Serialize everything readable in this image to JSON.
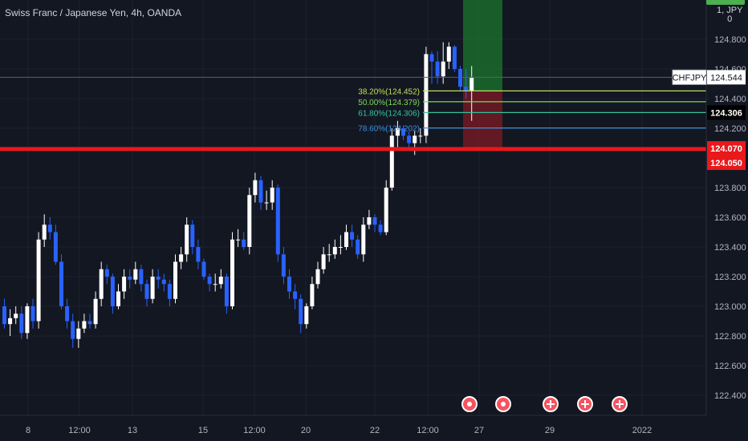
{
  "header": {
    "title": "Swiss Franc / Japanese Yen, 4h, OANDA",
    "currency_badge": "1, JPY",
    "currency_badge_suffix": "0"
  },
  "price_axis": {
    "ticks": [
      "124.800",
      "124.600",
      "124.400",
      "124.200",
      "123.800",
      "123.600",
      "123.400",
      "123.200",
      "123.000",
      "122.800",
      "122.600",
      "122.400"
    ],
    "symbol_label": "CHFJPY",
    "current_price": "124.544",
    "tags": [
      {
        "text": "124.306",
        "bg": "#000000",
        "color": "#ffffff"
      },
      {
        "text": "124.070",
        "bg": "#e8181b",
        "color": "#ffffff"
      },
      {
        "text": "124.050",
        "bg": "#e8181b",
        "color": "#ffffff"
      }
    ]
  },
  "time_axis": {
    "labels": [
      "8",
      "12:00",
      "13",
      "15",
      "12:00",
      "20",
      "22",
      "12:00",
      "27",
      "29",
      "2022"
    ]
  },
  "fib_levels": [
    {
      "label": "38.20%(124.452)",
      "price": 124.452,
      "color": "#c0e05a"
    },
    {
      "label": "50.00%(124.379)",
      "price": 124.379,
      "color": "#7ed957"
    },
    {
      "label": "61.80%(124.306)",
      "price": 124.306,
      "color": "#35c39b"
    },
    {
      "label": "78.60%(124.202)",
      "price": 124.202,
      "color": "#3e8fe0"
    }
  ],
  "support_line": {
    "price": 124.06,
    "color": "#e8181b"
  },
  "position_zone": {
    "take_profit_top": 125.0,
    "entry": 124.452,
    "stop": 124.07
  },
  "events": [
    {
      "type": "flag-icon"
    },
    {
      "type": "flag-icon"
    },
    {
      "type": "plus-icon"
    },
    {
      "type": "plus-icon"
    },
    {
      "type": "plus-icon"
    }
  ],
  "colors": {
    "up_candle": "#ffffff",
    "down_candle": "#2962ff",
    "background": "#131722",
    "grid": "#1e2230"
  },
  "chart_data": {
    "type": "candlestick",
    "series": [
      {
        "name": "CHFJPY",
        "open": [
          123.0,
          122.88,
          122.92,
          122.95,
          122.82,
          123.0,
          122.9,
          123.45,
          123.55,
          123.5,
          123.3,
          123.0,
          122.9,
          122.78,
          122.85,
          122.9,
          122.88,
          123.05,
          123.25,
          123.2,
          123.0,
          123.1,
          123.2,
          123.18,
          123.25,
          123.15,
          123.05,
          123.2,
          123.18,
          123.15,
          123.05,
          123.3,
          123.35,
          123.55,
          123.4,
          123.3,
          123.2,
          123.15,
          123.15,
          123.2,
          123.0,
          123.45,
          123.45,
          123.4,
          123.75,
          123.85,
          123.7,
          123.7,
          123.8,
          123.35,
          123.2,
          123.1,
          123.05,
          122.88,
          123.0,
          123.15,
          123.25,
          123.35,
          123.35,
          123.4,
          123.4,
          123.5,
          123.45,
          123.35,
          123.55,
          123.6,
          123.55,
          123.5,
          123.8,
          124.15,
          124.2,
          124.15,
          124.1,
          124.15,
          124.15,
          124.7,
          124.65,
          124.55,
          124.65,
          124.75,
          124.6,
          124.48,
          124.45
        ],
        "close": [
          122.88,
          122.92,
          122.95,
          122.82,
          123.0,
          122.9,
          123.45,
          123.55,
          123.5,
          123.3,
          123.0,
          122.9,
          122.78,
          122.85,
          122.9,
          122.88,
          123.05,
          123.25,
          123.2,
          123.0,
          123.1,
          123.2,
          123.18,
          123.25,
          123.15,
          123.05,
          123.2,
          123.18,
          123.15,
          123.05,
          123.3,
          123.35,
          123.55,
          123.4,
          123.3,
          123.2,
          123.15,
          123.15,
          123.2,
          123.0,
          123.45,
          123.45,
          123.4,
          123.75,
          123.85,
          123.7,
          123.7,
          123.8,
          123.35,
          123.2,
          123.1,
          123.05,
          122.88,
          123.0,
          123.15,
          123.25,
          123.35,
          123.35,
          123.4,
          123.4,
          123.5,
          123.45,
          123.35,
          123.55,
          123.6,
          123.55,
          123.5,
          123.8,
          124.15,
          124.2,
          124.15,
          124.1,
          124.15,
          124.15,
          124.7,
          124.65,
          124.55,
          124.65,
          124.75,
          124.6,
          124.48,
          124.45,
          124.54
        ],
        "high": [
          123.05,
          122.98,
          123.0,
          123.0,
          123.02,
          123.05,
          123.5,
          123.62,
          123.6,
          123.55,
          123.35,
          123.05,
          122.95,
          122.9,
          122.95,
          122.95,
          123.1,
          123.3,
          123.28,
          123.22,
          123.15,
          123.25,
          123.25,
          123.3,
          123.28,
          123.18,
          123.25,
          123.25,
          123.22,
          123.18,
          123.35,
          123.4,
          123.6,
          123.58,
          123.45,
          123.32,
          123.22,
          123.22,
          123.25,
          123.22,
          123.5,
          123.52,
          123.5,
          123.8,
          123.9,
          123.88,
          123.78,
          123.85,
          123.82,
          123.4,
          123.25,
          123.15,
          123.08,
          123.02,
          123.2,
          123.3,
          123.4,
          123.42,
          123.45,
          123.48,
          123.55,
          123.55,
          123.48,
          123.6,
          123.65,
          123.62,
          123.58,
          123.85,
          124.2,
          124.25,
          124.22,
          124.18,
          124.18,
          124.2,
          124.75,
          124.72,
          124.72,
          124.78,
          124.78,
          124.76,
          124.62,
          124.6,
          124.62
        ],
        "low": [
          122.85,
          122.8,
          122.88,
          122.78,
          122.78,
          122.85,
          122.85,
          123.4,
          123.45,
          123.28,
          122.98,
          122.85,
          122.72,
          122.72,
          122.82,
          122.85,
          122.85,
          123.0,
          123.15,
          122.95,
          122.98,
          123.05,
          123.12,
          123.15,
          123.1,
          123.0,
          123.02,
          123.12,
          123.1,
          123.0,
          123.02,
          123.25,
          123.3,
          123.35,
          123.25,
          123.18,
          123.1,
          123.1,
          123.12,
          122.95,
          122.98,
          123.4,
          123.38,
          123.35,
          123.7,
          123.65,
          123.65,
          123.65,
          123.3,
          123.15,
          123.05,
          122.98,
          122.82,
          122.85,
          122.98,
          123.12,
          123.22,
          123.3,
          123.32,
          123.35,
          123.38,
          123.4,
          123.32,
          123.3,
          123.52,
          123.5,
          123.48,
          123.48,
          123.78,
          124.05,
          124.12,
          124.05,
          124.02,
          124.1,
          124.1,
          124.5,
          124.5,
          124.5,
          124.6,
          124.58,
          124.45,
          124.4,
          124.25
        ]
      }
    ],
    "ylim": [
      122.3,
      125.0
    ],
    "grid": true
  }
}
